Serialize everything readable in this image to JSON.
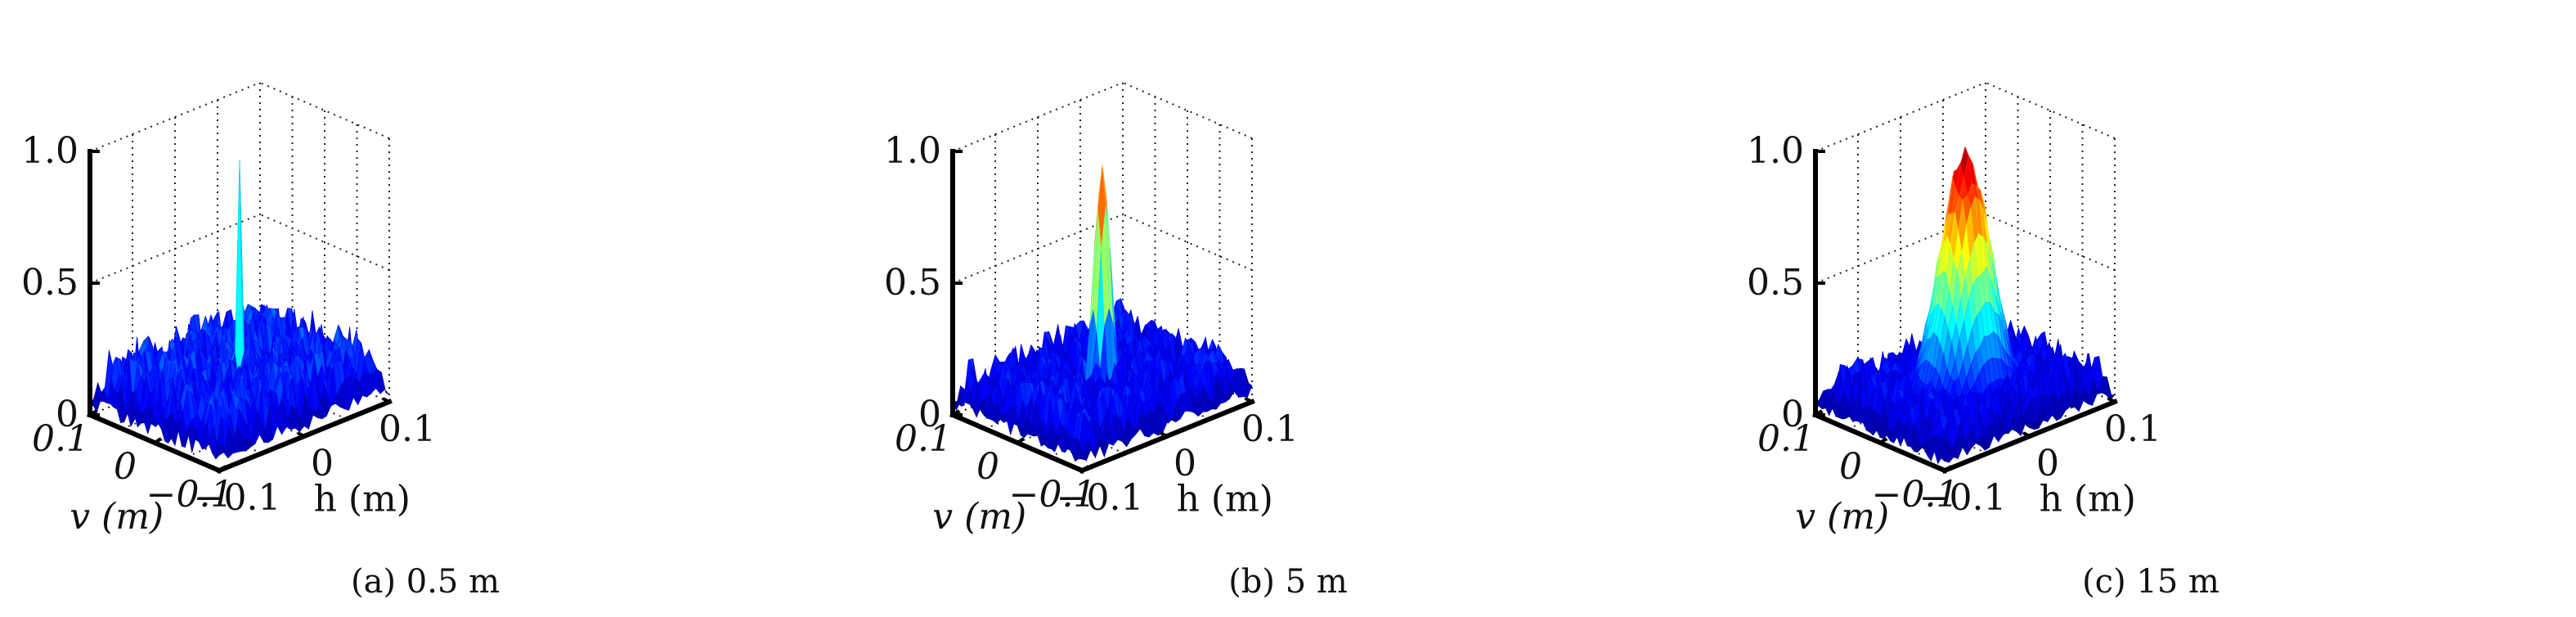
{
  "chart_data": [
    {
      "type": "surface3d",
      "caption": "(a) 0.5 m",
      "xlabel": "h (m)",
      "ylabel": "v (m)",
      "x_ticks": [
        "−0.1",
        "0",
        "0.1"
      ],
      "y_ticks": [
        "0.1",
        "0",
        "−0.1"
      ],
      "z_ticks": [
        "0",
        "0.5",
        "1.0"
      ],
      "xlim": [
        -0.1,
        0.1
      ],
      "ylim": [
        -0.1,
        0.1
      ],
      "zlim": [
        0,
        1.0
      ],
      "peak": {
        "h": 0,
        "v": 0,
        "z": 1.0
      },
      "peak_width_m": 0.003,
      "background_level": 0.22,
      "colormap": "jet",
      "grid": "on"
    },
    {
      "type": "surface3d",
      "caption": "(b) 5 m",
      "xlabel": "h (m)",
      "ylabel": "v (m)",
      "x_ticks": [
        "−0.1",
        "0",
        "0.1"
      ],
      "y_ticks": [
        "0.1",
        "0",
        "−0.1"
      ],
      "z_ticks": [
        "0",
        "0.5",
        "1.0"
      ],
      "xlim": [
        -0.1,
        0.1
      ],
      "ylim": [
        -0.1,
        0.1
      ],
      "zlim": [
        0,
        1.0
      ],
      "peak": {
        "h": 0,
        "v": 0,
        "z": 1.0
      },
      "peak_width_m": 0.008,
      "background_level": 0.18,
      "colormap": "jet",
      "grid": "on"
    },
    {
      "type": "surface3d",
      "caption": "(c) 15 m",
      "xlabel": "h (m)",
      "ylabel": "v (m)",
      "x_ticks": [
        "−0.1",
        "0",
        "0.1"
      ],
      "y_ticks": [
        "0.1",
        "0",
        "−0.1"
      ],
      "z_ticks": [
        "0",
        "0.5",
        "1.0"
      ],
      "xlim": [
        -0.1,
        0.1
      ],
      "ylim": [
        -0.1,
        0.1
      ],
      "zlim": [
        0,
        1.0
      ],
      "peak": {
        "h": 0,
        "v": 0,
        "z": 1.0
      },
      "peak_width_m": 0.025,
      "background_level": 0.16,
      "colormap": "jet",
      "grid": "on"
    }
  ]
}
